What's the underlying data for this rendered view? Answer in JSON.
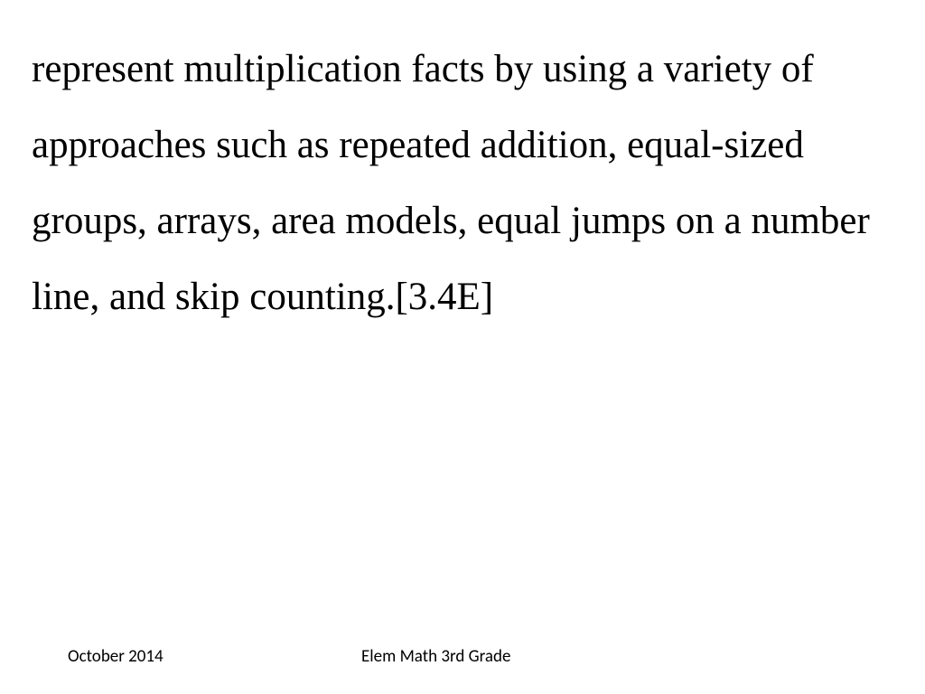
{
  "slide": {
    "body_text": "represent multiplication facts by using a variety of approaches such as repeated addition, equal-sized groups, arrays, area models, equal jumps on a number line, and skip counting.[3.4E]",
    "body_fontsize": 43,
    "body_font_family": "Comic Sans MS",
    "body_color": "#000000",
    "line_height": 1.95
  },
  "footer": {
    "left": "October 2014",
    "center": "Elem Math 3rd Grade",
    "fontsize": 19,
    "font_family": "Calibri",
    "color": "#000000"
  },
  "background_color": "#ffffff"
}
